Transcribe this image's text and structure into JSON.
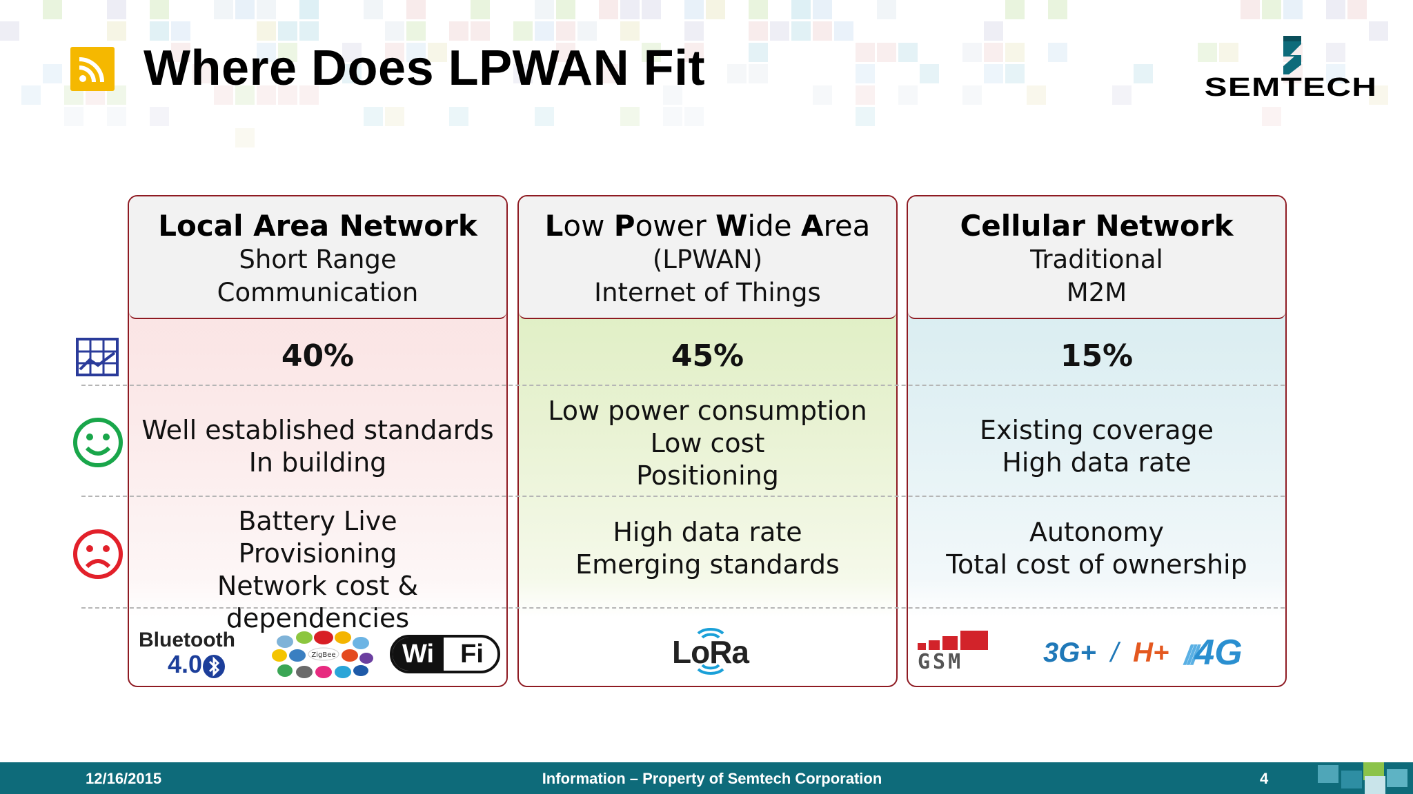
{
  "slide": {
    "title": "Where Does LPWAN Fit",
    "logo_text": "SEMTECH"
  },
  "columns": [
    {
      "heading": "Local Area Network",
      "sub": [
        "Short Range",
        "Communication"
      ],
      "share": "40%",
      "pros": [
        "Well established standards",
        "In building"
      ],
      "cons": [
        "Battery Live",
        "Provisioning",
        "Network cost & dependencies"
      ],
      "logos": [
        "Bluetooth",
        "4.0",
        "ZigBee",
        "Wi",
        "Fi"
      ]
    },
    {
      "heading_parts": [
        {
          "t": "L",
          "b": true
        },
        {
          "t": "ow ",
          "b": false
        },
        {
          "t": "P",
          "b": true
        },
        {
          "t": "ower ",
          "b": false
        },
        {
          "t": "W",
          "b": true
        },
        {
          "t": "ide ",
          "b": false
        },
        {
          "t": "A",
          "b": true
        },
        {
          "t": "rea",
          "b": false
        }
      ],
      "sub": [
        "(LPWAN)",
        "Internet of Things"
      ],
      "share": "45%",
      "pros": [
        "Low power consumption",
        "Low cost",
        "Positioning"
      ],
      "cons": [
        "High data rate",
        "Emerging standards"
      ],
      "logos": [
        "LoRa"
      ]
    },
    {
      "heading": "Cellular Network",
      "sub": [
        "Traditional",
        "M2M"
      ],
      "share": "15%",
      "pros": [
        "Existing coverage",
        "High data rate"
      ],
      "cons": [
        "Autonomy",
        "Total cost of ownership"
      ],
      "logos": [
        "GSM",
        "3G+",
        "/",
        "H+",
        "4G"
      ]
    }
  ],
  "row_icons": [
    "market-share-chart-icon",
    "smiley-face-icon",
    "sad-face-icon"
  ],
  "footer": {
    "date": "12/16/2015",
    "info": "Information – Property of Semtech Corporation",
    "page": "4"
  },
  "colors": {
    "border": "#8e1a22",
    "footer": "#0e6b7a",
    "rss": "#f5b800",
    "smile": "#19a64a",
    "sad": "#e2202a",
    "chart_icon": "#2a3b9a"
  }
}
